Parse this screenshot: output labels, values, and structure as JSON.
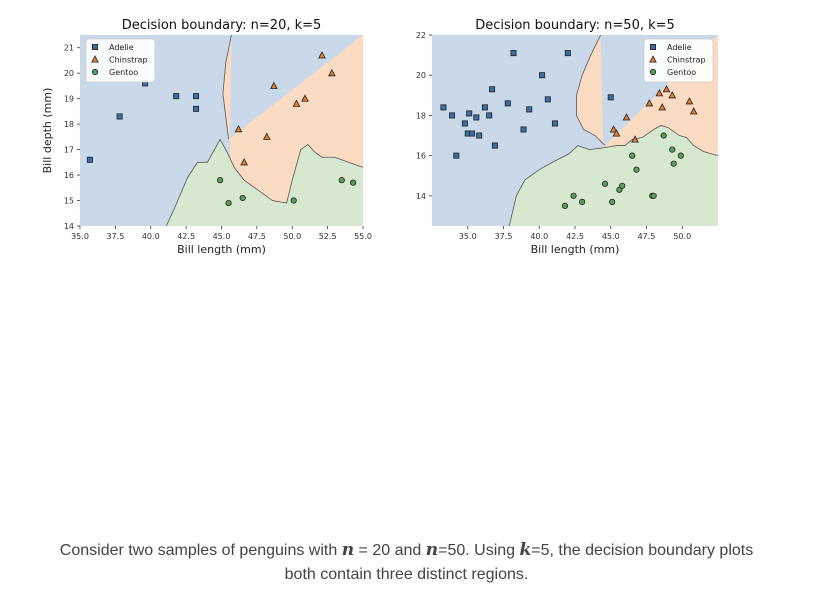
{
  "caption": {
    "prefix": "Consider two samples of penguins with",
    "n_symbol": "n",
    "eq1": "= 20 and",
    "eq2": "=50. Using",
    "k_symbol": "k",
    "suffix_line1": "=5, the decision boundary plots",
    "line2": "both contain three distinct regions."
  },
  "colors": {
    "Adelie_fill": "#c9d9ea",
    "Chinstrap_fill": "#fbdcc3",
    "Gentoo_fill": "#d6e8d0",
    "Adelie_marker": "#3a6ea5",
    "Chinstrap_marker": "#e07d2e",
    "Gentoo_marker": "#58a05a"
  },
  "chart_data": [
    {
      "type": "scatter",
      "title": "Decision boundary: n=20, k=5",
      "xlabel": "Bill length (mm)",
      "ylabel": "Bill depth (mm)",
      "xlim": [
        35.0,
        55.0
      ],
      "ylim": [
        14.0,
        21.5
      ],
      "xticks": [
        35.0,
        37.5,
        40.0,
        42.5,
        45.0,
        47.5,
        50.0,
        52.5,
        55.0
      ],
      "xtick_labels": [
        "35.0",
        "37.5",
        "40.0",
        "42.5",
        "45.0",
        "47.5",
        "50.0",
        "52.5",
        "55.0"
      ],
      "yticks": [
        14,
        15,
        16,
        17,
        18,
        19,
        20,
        21
      ],
      "ytick_labels": [
        "14",
        "15",
        "16",
        "17",
        "18",
        "19",
        "20",
        "21"
      ],
      "grid": false,
      "legend": {
        "placement": "top-left",
        "entries": [
          "Adelie",
          "Chinstrap",
          "Gentoo"
        ]
      },
      "regions": {
        "boundary_adelie_chinstrap": [
          [
            45.7,
            21.5
          ],
          [
            45.3,
            20.4
          ],
          [
            45.1,
            19.2
          ],
          [
            45.3,
            18.3
          ],
          [
            45.5,
            17.4
          ]
        ],
        "boundary_gentoo": [
          [
            41.1,
            14.0
          ],
          [
            41.6,
            14.6
          ],
          [
            42.6,
            15.9
          ],
          [
            43.3,
            16.5
          ],
          [
            44.0,
            16.5
          ],
          [
            44.9,
            17.4
          ],
          [
            45.4,
            16.9
          ],
          [
            45.9,
            16.3
          ],
          [
            46.6,
            15.8
          ],
          [
            47.6,
            15.4
          ],
          [
            48.6,
            15.0
          ],
          [
            49.6,
            14.9
          ],
          [
            50.0,
            15.8
          ],
          [
            50.6,
            17.0
          ],
          [
            51.1,
            17.2
          ],
          [
            51.6,
            16.9
          ],
          [
            52.1,
            16.7
          ],
          [
            53.0,
            16.7
          ],
          [
            54.0,
            16.5
          ],
          [
            55.0,
            16.3
          ]
        ]
      },
      "series": [
        {
          "name": "Adelie",
          "marker": "square",
          "x": [
            35.7,
            37.8,
            39.6,
            41.8,
            43.2,
            43.2
          ],
          "y": [
            16.6,
            18.3,
            19.6,
            19.1,
            19.1,
            18.6
          ]
        },
        {
          "name": "Chinstrap",
          "marker": "triangle",
          "x": [
            46.2,
            46.6,
            48.2,
            48.7,
            50.3,
            50.9,
            52.1,
            52.8
          ],
          "y": [
            17.8,
            16.5,
            17.5,
            19.5,
            18.8,
            19.0,
            20.7,
            20.0
          ]
        },
        {
          "name": "Gentoo",
          "marker": "circle",
          "x": [
            44.9,
            45.5,
            46.5,
            50.1,
            53.5,
            54.3
          ],
          "y": [
            15.8,
            14.9,
            15.1,
            15.0,
            15.8,
            15.7
          ]
        }
      ]
    },
    {
      "type": "scatter",
      "title": "Decision boundary: n=50, k=5",
      "xlabel": "Bill length (mm)",
      "ylabel": "",
      "xlim": [
        32.5,
        52.5
      ],
      "ylim": [
        12.5,
        22.0
      ],
      "xticks": [
        35.0,
        37.5,
        40.0,
        42.5,
        45.0,
        47.5,
        50.0
      ],
      "xtick_labels": [
        "35.0",
        "37.5",
        "40.0",
        "42.5",
        "45.0",
        "47.5",
        "50.0"
      ],
      "yticks": [
        14,
        16,
        18,
        20,
        22
      ],
      "ytick_labels": [
        "14",
        "16",
        "18",
        "20",
        "22"
      ],
      "grid": false,
      "legend": {
        "placement": "top-right",
        "entries": [
          "Adelie",
          "Chinstrap",
          "Gentoo"
        ]
      },
      "regions": {
        "boundary_adelie_chinstrap": [
          [
            44.3,
            22.0
          ],
          [
            43.6,
            21.0
          ],
          [
            43.0,
            20.0
          ],
          [
            42.6,
            19.0
          ],
          [
            42.6,
            18.0
          ],
          [
            43.1,
            17.3
          ],
          [
            43.9,
            17.0
          ],
          [
            44.6,
            16.5
          ]
        ],
        "boundary_gentoo": [
          [
            37.9,
            12.5
          ],
          [
            38.4,
            14.0
          ],
          [
            39.0,
            14.8
          ],
          [
            40.0,
            15.3
          ],
          [
            41.0,
            15.7
          ],
          [
            42.1,
            16.1
          ],
          [
            42.7,
            16.5
          ],
          [
            43.5,
            16.3
          ],
          [
            44.6,
            16.4
          ],
          [
            45.4,
            16.5
          ],
          [
            46.0,
            16.5
          ],
          [
            46.5,
            16.8
          ],
          [
            47.2,
            16.9
          ],
          [
            48.0,
            17.3
          ],
          [
            48.5,
            17.5
          ],
          [
            49.0,
            17.4
          ],
          [
            49.8,
            17.0
          ],
          [
            50.3,
            16.9
          ],
          [
            50.8,
            16.5
          ],
          [
            51.5,
            16.2
          ],
          [
            52.5,
            16.0
          ]
        ]
      },
      "series": [
        {
          "name": "Adelie",
          "marker": "square",
          "x": [
            33.3,
            33.9,
            34.2,
            34.8,
            35.0,
            35.1,
            35.3,
            35.6,
            35.8,
            36.2,
            36.5,
            36.7,
            36.9,
            37.8,
            38.2,
            38.9,
            39.3,
            40.2,
            40.6,
            41.1,
            42.0,
            45.0
          ],
          "y": [
            18.4,
            18.0,
            16.0,
            17.6,
            17.1,
            18.1,
            17.1,
            17.9,
            17.0,
            18.4,
            18.0,
            19.3,
            16.5,
            18.6,
            21.1,
            17.3,
            18.3,
            20.0,
            18.8,
            17.6,
            21.1,
            18.9
          ]
        },
        {
          "name": "Chinstrap",
          "marker": "triangle",
          "x": [
            45.2,
            45.4,
            46.1,
            46.7,
            47.7,
            48.4,
            48.6,
            48.9,
            49.3,
            50.5,
            50.8
          ],
          "y": [
            17.3,
            17.1,
            17.9,
            16.8,
            18.6,
            19.1,
            18.4,
            19.3,
            19.0,
            18.7,
            18.2
          ]
        },
        {
          "name": "Gentoo",
          "marker": "circle",
          "x": [
            41.8,
            42.4,
            43.0,
            44.6,
            45.1,
            45.6,
            45.8,
            46.5,
            46.8,
            47.9,
            48.0,
            48.7,
            49.3,
            49.4,
            49.9
          ],
          "y": [
            13.5,
            14.0,
            13.7,
            14.6,
            13.7,
            14.3,
            14.5,
            16.0,
            15.3,
            14.0,
            14.0,
            17.0,
            16.3,
            15.6,
            16.0
          ]
        }
      ]
    }
  ]
}
